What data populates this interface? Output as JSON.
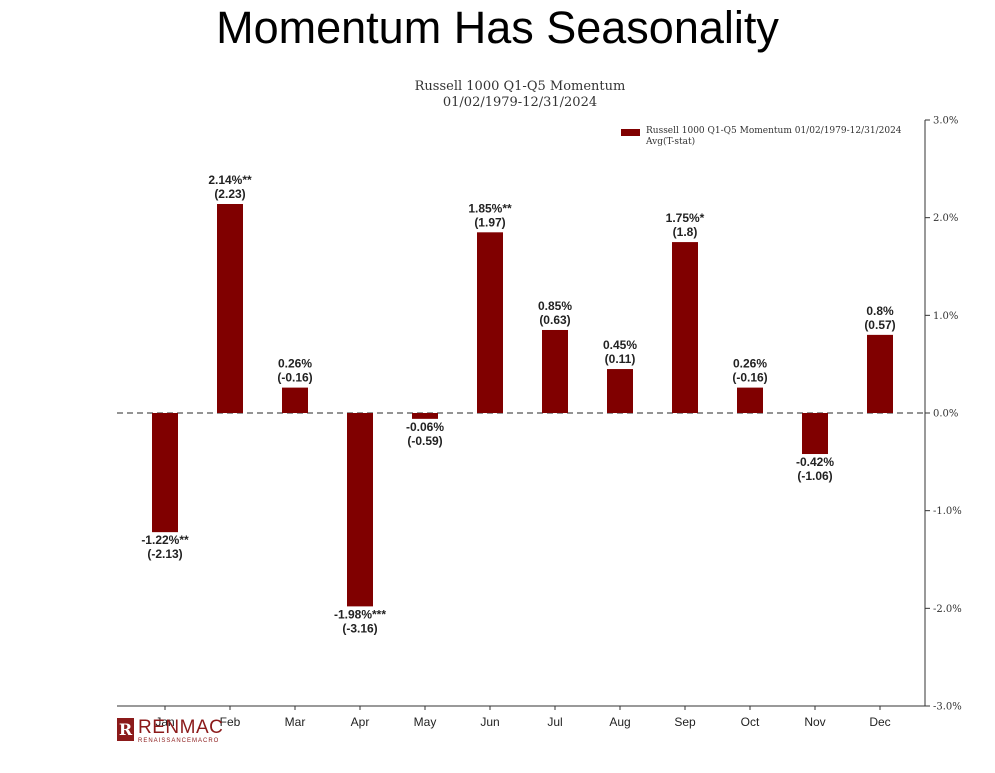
{
  "slide": {
    "title": "Momentum Has Seasonality"
  },
  "chart_data": {
    "type": "bar",
    "title": "Russell 1000 Q1-Q5 Momentum",
    "subtitle": "01/02/1979-12/31/2024",
    "categories": [
      "Jan",
      "Feb",
      "Mar",
      "Apr",
      "May",
      "Jun",
      "Jul",
      "Aug",
      "Sep",
      "Oct",
      "Nov",
      "Dec"
    ],
    "series": [
      {
        "name": "Russell 1000 Q1-Q5 Momentum 01/02/1979-12/31/2024",
        "values": [
          -1.22,
          2.14,
          0.26,
          -1.98,
          -0.06,
          1.85,
          0.85,
          0.45,
          1.75,
          0.26,
          -0.42,
          0.8
        ]
      }
    ],
    "value_labels": [
      "-1.22%**",
      "2.14%**",
      "0.26%",
      "-1.98%***",
      "-0.06%",
      "1.85%**",
      "0.85%",
      "0.45%",
      "1.75%*",
      "0.26%",
      "-0.42%",
      "0.8%"
    ],
    "tstat_labels": [
      "(-2.13)",
      "(2.23)",
      "(-0.16)",
      "(-3.16)",
      "(-0.59)",
      "(1.97)",
      "(0.63)",
      "(0.11)",
      "(1.8)",
      "(-0.16)",
      "(-1.06)",
      "(0.57)"
    ],
    "legend": {
      "entries": [
        "Russell 1000 Q1-Q5 Momentum 01/02/1979-12/31/2024",
        "Avg(T-stat)"
      ],
      "position": "top-right"
    },
    "ylim": [
      -3,
      3
    ],
    "yticks": [
      3,
      2,
      1,
      0,
      -1,
      -2,
      -3
    ],
    "ytick_labels": [
      "3.0%",
      "2.0%",
      "1.0%",
      "0.0%",
      "-1.0%",
      "-2.0%",
      "-3.0%"
    ],
    "yaxis_side": "right",
    "zero_line": "dashed",
    "grid": false,
    "bar_color": "#800000"
  },
  "logo": {
    "name": "RENMAC",
    "tagline": "RENAISSANCEMACRO",
    "mark": "R"
  }
}
